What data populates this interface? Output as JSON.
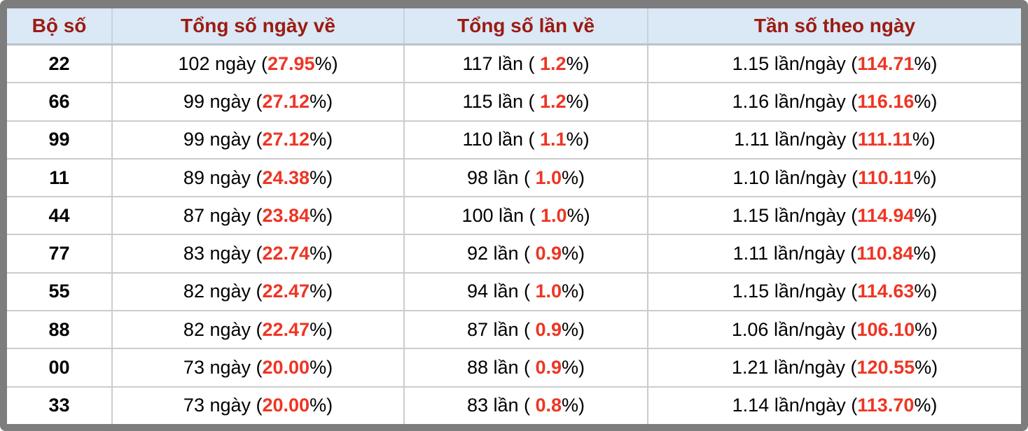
{
  "colors": {
    "frame_gray": "#7d7d7d",
    "header_bg": "#dbe8f5",
    "header_text": "#9b1b12",
    "grid_line": "#cccccc",
    "accent_red": "#ee3524",
    "body_text": "#000000"
  },
  "table": {
    "headers": [
      {
        "label": "Bộ số"
      },
      {
        "label": "Tổng số ngày về"
      },
      {
        "label": "Tổng số lần về"
      },
      {
        "label": "Tần số theo ngày"
      }
    ],
    "rows": [
      {
        "pair": "22",
        "days": [
          "102 ngày (",
          "27.95",
          "%)"
        ],
        "times": [
          "117 lần ( ",
          "1.2",
          "%)"
        ],
        "freq": [
          "1.15 lần/ngày (",
          "114.71",
          "%)"
        ]
      },
      {
        "pair": "66",
        "days": [
          "99 ngày (",
          "27.12",
          "%)"
        ],
        "times": [
          "115 lần ( ",
          "1.2",
          "%)"
        ],
        "freq": [
          "1.16 lần/ngày (",
          "116.16",
          "%)"
        ]
      },
      {
        "pair": "99",
        "days": [
          "99 ngày (",
          "27.12",
          "%)"
        ],
        "times": [
          "110 lần ( ",
          "1.1",
          "%)"
        ],
        "freq": [
          "1.11 lần/ngày (",
          "111.11",
          "%)"
        ]
      },
      {
        "pair": "11",
        "days": [
          "89 ngày (",
          "24.38",
          "%)"
        ],
        "times": [
          "98 lần ( ",
          "1.0",
          "%)"
        ],
        "freq": [
          "1.10 lần/ngày (",
          "110.11",
          "%)"
        ]
      },
      {
        "pair": "44",
        "days": [
          "87 ngày (",
          "23.84",
          "%)"
        ],
        "times": [
          "100 lần ( ",
          "1.0",
          "%)"
        ],
        "freq": [
          "1.15 lần/ngày (",
          "114.94",
          "%)"
        ]
      },
      {
        "pair": "77",
        "days": [
          "83 ngày (",
          "22.74",
          "%)"
        ],
        "times": [
          "92 lần ( ",
          "0.9",
          "%)"
        ],
        "freq": [
          "1.11 lần/ngày (",
          "110.84",
          "%)"
        ]
      },
      {
        "pair": "55",
        "days": [
          "82 ngày (",
          "22.47",
          "%)"
        ],
        "times": [
          "94 lần ( ",
          "1.0",
          "%)"
        ],
        "freq": [
          "1.15 lần/ngày (",
          "114.63",
          "%)"
        ]
      },
      {
        "pair": "88",
        "days": [
          "82 ngày (",
          "22.47",
          "%)"
        ],
        "times": [
          "87 lần ( ",
          "0.9",
          "%)"
        ],
        "freq": [
          "1.06 lần/ngày (",
          "106.10",
          "%)"
        ]
      },
      {
        "pair": "00",
        "days": [
          "73 ngày (",
          "20.00",
          "%)"
        ],
        "times": [
          "88 lần ( ",
          "0.9",
          "%)"
        ],
        "freq": [
          "1.21 lần/ngày (",
          "120.55",
          "%)"
        ]
      },
      {
        "pair": "33",
        "days": [
          "73 ngày (",
          "20.00",
          "%)"
        ],
        "times": [
          "83 lần ( ",
          "0.8",
          "%)"
        ],
        "freq": [
          "1.14 lần/ngày (",
          "113.70",
          "%)"
        ]
      }
    ]
  }
}
